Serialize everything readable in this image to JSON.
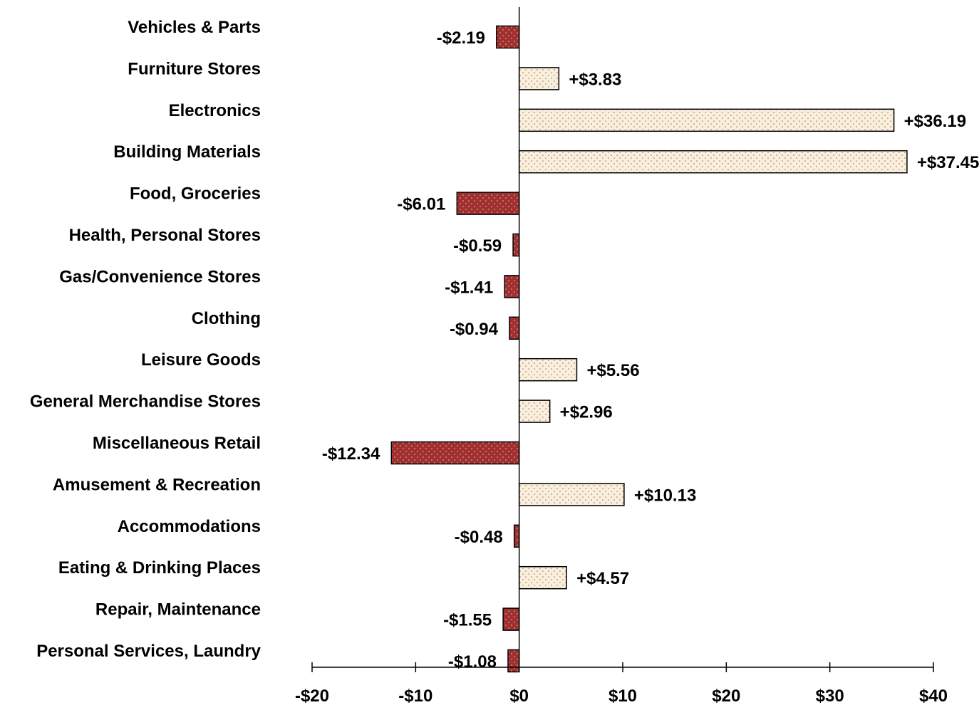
{
  "chart_data": {
    "type": "bar",
    "orientation": "horizontal",
    "categories": [
      "Vehicles & Parts",
      "Furniture Stores",
      "Electronics",
      "Building Materials",
      "Food, Groceries",
      "Health, Personal Stores",
      "Gas/Convenience Stores",
      "Clothing",
      "Leisure Goods",
      "General Merchandise Stores",
      "Miscellaneous Retail",
      "Amusement & Recreation",
      "Accommodations",
      "Eating & Drinking Places",
      "Repair, Maintenance",
      "Personal Services, Laundry"
    ],
    "values": [
      -2.19,
      3.83,
      36.19,
      37.45,
      -6.01,
      -0.59,
      -1.41,
      -0.94,
      5.56,
      2.96,
      -12.34,
      10.13,
      -0.48,
      4.57,
      -1.55,
      -1.08
    ],
    "value_labels": [
      "-$2.19",
      "+$3.83",
      "+$36.19",
      "+$37.45",
      "-$6.01",
      "-$0.59",
      "-$1.41",
      "-$0.94",
      "+$5.56",
      "+$2.96",
      "-$12.34",
      "+$10.13",
      "-$0.48",
      "+$4.57",
      "-$1.55",
      "-$1.08"
    ],
    "xlim": [
      -20,
      40
    ],
    "xticks": [
      -20,
      -10,
      0,
      10,
      20,
      30,
      40
    ],
    "xtick_labels": [
      "-$20",
      "-$10",
      "$0",
      "$10",
      "$20",
      "$30",
      "$40"
    ],
    "grid": false,
    "legend": "none",
    "colors": {
      "negative_fill": "#a03030",
      "negative_dot": "#e8c0a8",
      "positive_fill": "#f6f0dc",
      "positive_dot": "#c06050",
      "outline": "#000000"
    }
  }
}
